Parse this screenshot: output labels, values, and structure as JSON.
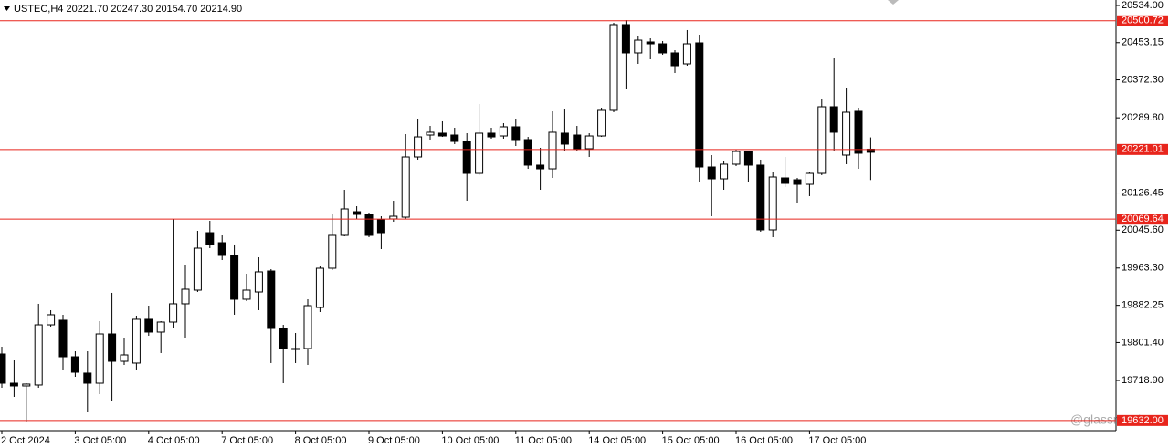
{
  "chart_data": {
    "type": "candlestick",
    "title": "USTEC,H4  20221.70 20247.30 20154.70 20214.90",
    "watermark": "@glassresults",
    "categories": [
      "2 Oct 2024",
      null,
      null,
      null,
      null,
      null,
      "3 Oct 05:00",
      null,
      null,
      null,
      null,
      null,
      "4 Oct 05:00",
      null,
      null,
      null,
      null,
      null,
      "7 Oct 05:00",
      null,
      null,
      null,
      null,
      null,
      "8 Oct 05:00",
      null,
      null,
      null,
      null,
      null,
      "9 Oct 05:00",
      null,
      null,
      null,
      null,
      null,
      "10 Oct 05:00",
      null,
      null,
      null,
      null,
      null,
      "11 Oct 05:00",
      null,
      null,
      null,
      null,
      null,
      "14 Oct 05:00",
      null,
      null,
      null,
      null,
      null,
      "15 Oct 05:00",
      null,
      null,
      null,
      null,
      null,
      "16 Oct 05:00",
      null,
      null,
      null,
      null,
      null,
      "17 Oct 05:00",
      null,
      null,
      null,
      null,
      null
    ],
    "open": [
      19776.5,
      19713.0,
      19707.1,
      19709.1,
      19839.9,
      19849.9,
      19770.5,
      19734.9,
      19713.0,
      19820.1,
      19760.6,
      19756.7,
      19851.9,
      19824.1,
      19845.9,
      19885.6,
      19915.3,
      20040.2,
      20018.4,
      19990.7,
      19895.5,
      19911.3,
      19956.9,
      19832.0,
      19788.4,
      19788.4,
      19877.6,
      19962.9,
      20034.3,
      20085.8,
      20079.9,
      20068.0,
      20070.0,
      20073.9,
      20204.8,
      20252.4,
      20256.4,
      20252.4,
      20238.5,
      20169.1,
      20256.4,
      20250.4,
      20270.3,
      20242.5,
      20187.0,
      20179.0,
      20256.4,
      20252.4,
      20222.7,
      20250.4,
      20306.0,
      20492.4,
      20430.9,
      20454.7,
      20450.7,
      20430.9,
      20407.1,
      20452.7,
      20183.0,
      20157.2,
      20189.0,
      20216.7,
      20187.0,
      20046.2,
      20159.2,
      20155.2,
      20145.3,
      20169.1,
      20313.9,
      20208.8,
      20304.0,
      20221.7
    ],
    "high": [
      19792.4,
      19762.6,
      19713.0,
      19885.6,
      19871.7,
      19861.8,
      19782.4,
      19782.4,
      19847.9,
      19909.4,
      19812.2,
      19859.8,
      19881.6,
      19847.9,
      20070.0,
      19970.8,
      20044.2,
      20066.0,
      20034.3,
      20014.5,
      19951.0,
      19986.7,
      19960.9,
      19839.9,
      19822.1,
      19895.5,
      19966.9,
      20079.9,
      20133.4,
      20097.7,
      20083.9,
      20075.9,
      20109.6,
      20254.4,
      20288.1,
      20272.2,
      20282.2,
      20268.3,
      20256.4,
      20319.8,
      20268.3,
      20278.2,
      20288.1,
      20248.4,
      20224.7,
      20304.0,
      20307.9,
      20272.2,
      20256.4,
      20311.9,
      20496.3,
      20502.3,
      20466.6,
      20462.6,
      20456.7,
      20436.8,
      20480.5,
      20470.5,
      20208.8,
      20196.9,
      20220.7,
      20218.7,
      20198.9,
      20173.1,
      20204.8,
      20159.2,
      20173.1,
      20331.7,
      20419.0,
      20355.5,
      20311.9,
      20247.3
    ],
    "low": [
      19703.1,
      19683.3,
      19629.8,
      19703.1,
      19836.0,
      19742.8,
      19726.9,
      19649.6,
      19689.2,
      19673.4,
      19752.7,
      19742.8,
      19816.2,
      19778.5,
      19832.0,
      19812.2,
      19911.3,
      20006.5,
      19980.7,
      19861.8,
      19891.5,
      19871.7,
      19756.7,
      19713.0,
      19756.7,
      19752.7,
      19867.7,
      19958.9,
      20032.3,
      20070.0,
      20030.3,
      20004.5,
      20064.0,
      20070.0,
      20198.9,
      20242.5,
      20248.4,
      20232.6,
      20109.6,
      20165.2,
      20244.5,
      20244.5,
      20228.6,
      20179.0,
      20133.4,
      20159.2,
      20218.7,
      20216.7,
      20204.8,
      20248.4,
      20302.0,
      20351.6,
      20407.1,
      20417.0,
      20426.9,
      20387.3,
      20403.1,
      20149.3,
      20075.9,
      20133.4,
      20185.0,
      20149.3,
      20042.2,
      20030.3,
      20139.4,
      20105.7,
      20119.6,
      20165.2,
      20216.7,
      20189.0,
      20179.0,
      20154.7
    ],
    "close": [
      19713.0,
      19707.1,
      19711.1,
      19839.9,
      19861.8,
      19770.5,
      19736.8,
      19713.0,
      19820.1,
      19760.6,
      19774.5,
      19851.9,
      19824.1,
      19845.9,
      19885.6,
      19917.3,
      20006.5,
      20014.5,
      19990.7,
      19895.5,
      19915.3,
      19955.0,
      19832.0,
      19788.4,
      19786.4,
      19881.6,
      19962.9,
      20034.3,
      20091.8,
      20079.9,
      20034.3,
      20040.2,
      20075.9,
      20204.8,
      20248.4,
      20258.4,
      20250.4,
      20238.5,
      20169.1,
      20256.4,
      20248.4,
      20270.3,
      20242.5,
      20187.0,
      20179.0,
      20258.4,
      20232.6,
      20222.7,
      20250.4,
      20306.0,
      20492.4,
      20430.9,
      20458.6,
      20450.7,
      20430.9,
      20403.1,
      20450.7,
      20183.0,
      20157.2,
      20189.0,
      20216.7,
      20187.0,
      20046.2,
      20161.2,
      20147.3,
      20145.3,
      20169.1,
      20313.9,
      20258.4,
      20302.0,
      20212.8,
      20214.9
    ],
    "up_color": "#ffffff",
    "down_color": "#000000",
    "ylim": [
      19609.9,
      20545.9
    ],
    "yticks": [
      {
        "value": 20534.0,
        "label": "20534.00"
      },
      20453.15,
      {
        "value": 20372.3,
        "label": "20372.30"
      },
      {
        "value": 20289.8,
        "label": "20289.80"
      },
      20126.45,
      {
        "value": 20045.6,
        "label": "20045.60"
      },
      {
        "value": 19963.3,
        "label": "19963.30"
      },
      19882.25,
      {
        "value": 19801.4,
        "label": "19801.40"
      },
      {
        "value": 19718.9,
        "label": "19718.90"
      }
    ],
    "hlines": [
      20500.72,
      20221.01,
      20069.64,
      {
        "value": 19632,
        "label": "19632.00"
      }
    ],
    "hline_color": "#e8251c",
    "grid": false
  }
}
